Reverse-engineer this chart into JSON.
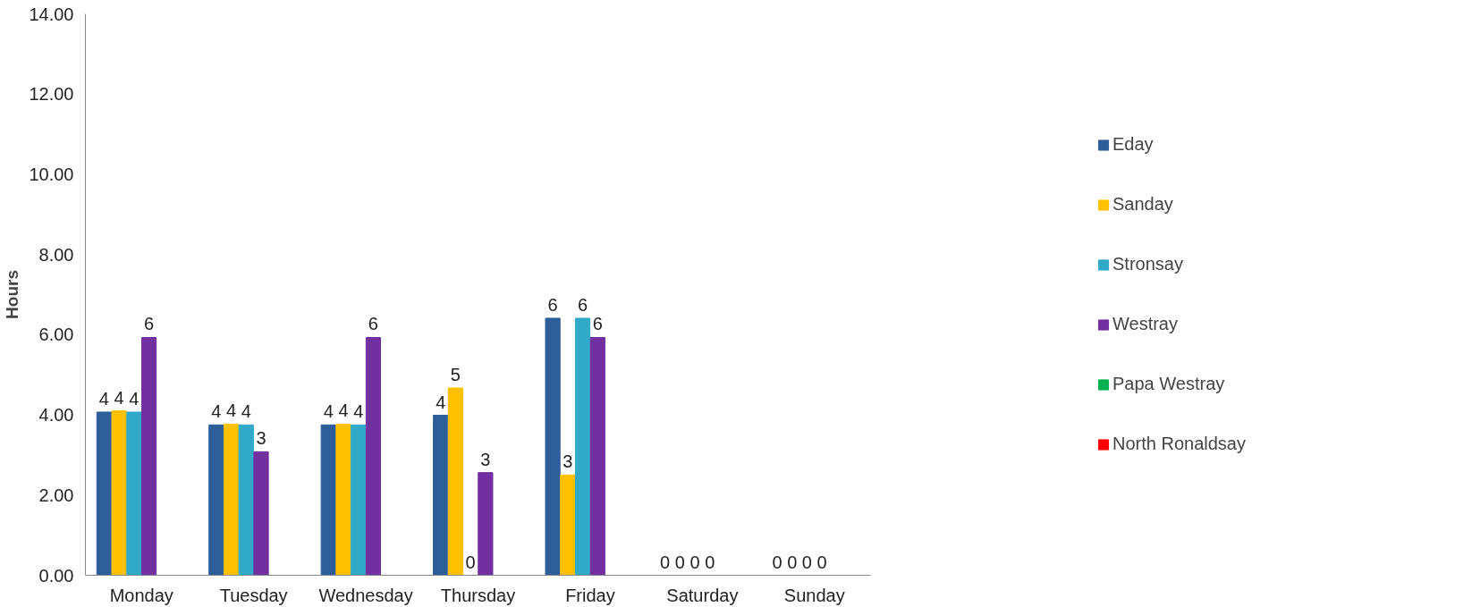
{
  "chart_data": {
    "type": "bar",
    "ylabel": "Hours",
    "categories": [
      "Monday",
      "Tuesday",
      "Wednesday",
      "Thursday",
      "Friday",
      "Saturday",
      "Sunday"
    ],
    "series": [
      {
        "name": "Eday",
        "color": "#2e5e9a",
        "values": [
          4.07,
          3.75,
          3.75,
          3.99,
          6.41,
          0,
          0
        ],
        "value_labels": [
          "4",
          "4",
          "4",
          "4",
          "6",
          "0",
          "0"
        ]
      },
      {
        "name": "Sanday",
        "color": "#ffc000",
        "values": [
          4.1,
          3.77,
          3.77,
          4.67,
          2.5,
          0,
          0
        ],
        "value_labels": [
          "4",
          "4",
          "4",
          "5",
          "3",
          "0",
          "0"
        ]
      },
      {
        "name": "Stronsay",
        "color": "#31a9c9",
        "values": [
          4.07,
          3.75,
          3.75,
          0,
          6.41,
          0,
          0
        ],
        "value_labels": [
          "4",
          "4",
          "4",
          "0",
          "6",
          "0",
          "0"
        ]
      },
      {
        "name": "Westray",
        "color": "#7030a0",
        "values": [
          5.93,
          3.08,
          5.93,
          2.56,
          5.93,
          0,
          0
        ],
        "value_labels": [
          "6",
          "3",
          "6",
          "3",
          "6",
          "0",
          "0"
        ]
      },
      {
        "name": "Papa Westray",
        "color": "#00b050",
        "values": [
          null,
          null,
          null,
          null,
          null,
          null,
          null
        ]
      },
      {
        "name": "North Ronaldsay",
        "color": "#ff0000",
        "values": [
          null,
          null,
          null,
          null,
          null,
          null,
          null
        ]
      }
    ],
    "ylim": [
      0,
      14
    ],
    "yticks": [
      {
        "value": 0,
        "label": "0.00"
      },
      {
        "value": 2,
        "label": "2.00"
      },
      {
        "value": 4,
        "label": "4.00"
      },
      {
        "value": 6,
        "label": "6.00"
      },
      {
        "value": 8,
        "label": "8.00"
      },
      {
        "value": 10,
        "label": "10.00"
      },
      {
        "value": 12,
        "label": "12.00"
      },
      {
        "value": 14,
        "label": "14.00"
      }
    ],
    "grid": false,
    "legend": "right"
  }
}
